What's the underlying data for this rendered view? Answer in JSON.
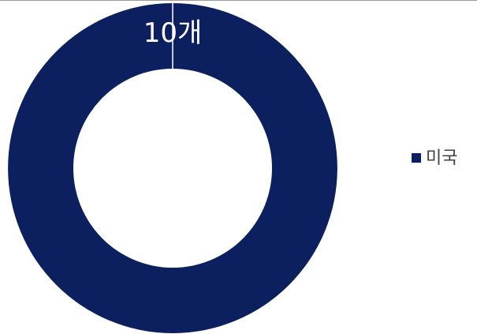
{
  "chart_data": {
    "type": "donut",
    "categories": [
      "미국"
    ],
    "values": [
      10
    ],
    "value_labels": [
      "10개"
    ],
    "colors": [
      "#0c1f5e"
    ],
    "legend": "right"
  }
}
